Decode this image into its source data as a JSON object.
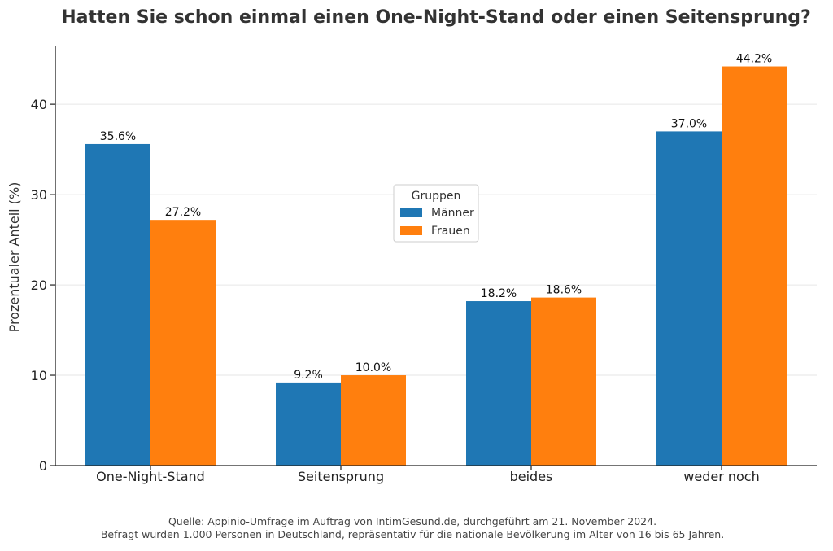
{
  "chart_data": {
    "type": "bar",
    "title": "Hatten Sie schon einmal einen One-Night-Stand oder einen Seitensprung?",
    "xlabel": "",
    "ylabel": "Prozentualer Anteil (%)",
    "categories": [
      "One-Night-Stand",
      "Seitensprung",
      "beides",
      "weder noch"
    ],
    "series": [
      {
        "name": "Männer",
        "values": [
          35.6,
          9.2,
          18.2,
          37.0
        ],
        "labels": [
          "35.6%",
          "9.2%",
          "18.2%",
          "37.0%"
        ],
        "color": "#1f77b4"
      },
      {
        "name": "Frauen",
        "values": [
          27.2,
          10.0,
          18.6,
          44.2
        ],
        "labels": [
          "27.2%",
          "10.0%",
          "18.6%",
          "44.2%"
        ],
        "color": "#ff7f0e"
      }
    ],
    "ylim": [
      0,
      46.5
    ],
    "yticks": [
      0,
      10,
      20,
      30,
      40
    ],
    "grid": true,
    "legend": {
      "title": "Gruppen",
      "placement": "center"
    },
    "footer": {
      "line1": "Quelle: Appinio-Umfrage im Auftrag von IntimGesund.de, durchgeführt am 21. November 2024.",
      "line2": "Befragt wurden 1.000 Personen in Deutschland, repräsentativ für die nationale Bevölkerung im Alter von 16 bis 65 Jahren."
    }
  }
}
